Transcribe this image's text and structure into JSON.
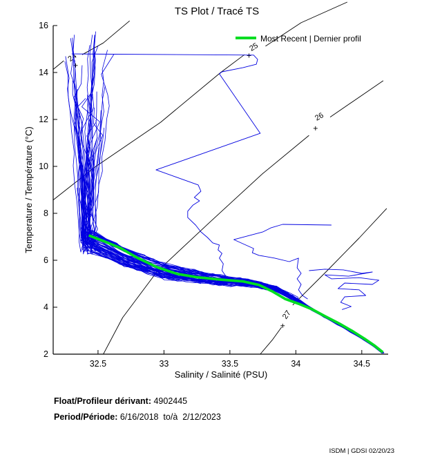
{
  "title": "TS Plot / Tracé TS",
  "legend": {
    "label": "Most Recent | Dernier profil",
    "color": "#00dd22"
  },
  "info": {
    "float_label": "Float/Profileur dérivant:",
    "float_value": " 4902445",
    "period_label": "Period/Période:",
    "period_value": " 6/16/2018  to/à  2/12/2023"
  },
  "footer": "ISDM | GDSI 02/20/23",
  "chart_data": {
    "type": "line",
    "title": "TS Plot / Tracé TS",
    "xlabel": "Salinity / Salinité (PSU)",
    "ylabel": "Temperature / Température (°C)",
    "xlim": [
      32.16,
      34.7
    ],
    "ylim": [
      2,
      16
    ],
    "xticks": [
      32.5,
      33,
      33.5,
      34,
      34.5
    ],
    "yticks": [
      2,
      4,
      6,
      8,
      10,
      12,
      14,
      16
    ],
    "grid": false,
    "legend_position": "top-right",
    "profile_color": "#0000e0",
    "most_recent_profile": {
      "name": "Most Recent | Dernier profil",
      "color": "#00dd22",
      "points_S_T": [
        [
          32.43,
          7.06
        ],
        [
          32.55,
          6.8
        ],
        [
          32.67,
          6.52
        ],
        [
          32.8,
          6.1
        ],
        [
          32.95,
          5.7
        ],
        [
          33.1,
          5.42
        ],
        [
          33.25,
          5.28
        ],
        [
          33.42,
          5.18
        ],
        [
          33.6,
          5.1
        ],
        [
          33.72,
          4.95
        ],
        [
          33.82,
          4.68
        ],
        [
          33.92,
          4.35
        ],
        [
          34.02,
          4.15
        ],
        [
          34.12,
          3.92
        ],
        [
          34.22,
          3.62
        ],
        [
          34.33,
          3.3
        ],
        [
          34.43,
          2.98
        ],
        [
          34.52,
          2.66
        ],
        [
          34.6,
          2.35
        ],
        [
          34.66,
          2.08
        ]
      ]
    },
    "ensemble": {
      "description": "All historical TS profiles of float 4902445 (blue spaghetti)",
      "color": "#0000e0",
      "count": 55,
      "seed": 11,
      "surface_T_min": 7.3,
      "surface_T_max": 15.9,
      "knee": {
        "S": 32.41,
        "T": 6.7,
        "S_spread": 0.1,
        "T_spread": 0.9
      },
      "traverse_anchors": {
        "S": [
          32.45,
          32.7,
          33.0,
          33.3,
          33.6,
          33.85,
          34.02
        ],
        "T": [
          6.85,
          6.15,
          5.55,
          5.25,
          5.05,
          4.8,
          4.28
        ]
      },
      "deep_anchors": {
        "S": [
          34.02,
          34.12,
          34.22,
          34.32,
          34.42,
          34.52,
          34.6,
          34.66
        ],
        "T": [
          4.28,
          3.92,
          3.6,
          3.28,
          2.95,
          2.62,
          2.33,
          2.05
        ]
      }
    },
    "outlier_profiles": [
      {
        "points_S_T": [
          [
            32.3,
            14.79
          ],
          [
            33.68,
            14.74
          ],
          [
            33.71,
            14.56
          ],
          [
            33.7,
            14.35
          ],
          [
            33.6,
            14.21
          ],
          [
            33.44,
            14.03
          ],
          [
            33.42,
            13.94
          ],
          [
            33.73,
            11.41
          ],
          [
            32.94,
            9.85
          ],
          [
            33.26,
            9.21
          ],
          [
            33.28,
            8.94
          ],
          [
            33.23,
            8.68
          ],
          [
            33.27,
            8.53
          ],
          [
            33.22,
            8.35
          ],
          [
            33.18,
            8.09
          ],
          [
            33.18,
            7.82
          ],
          [
            33.24,
            7.5
          ],
          [
            33.28,
            7.21
          ],
          [
            33.33,
            6.97
          ],
          [
            33.37,
            6.74
          ],
          [
            33.42,
            6.65
          ],
          [
            33.41,
            6.44
          ],
          [
            33.44,
            6.29
          ],
          [
            33.42,
            6.09
          ],
          [
            33.45,
            5.85
          ],
          [
            33.44,
            5.56
          ],
          [
            33.47,
            5.32
          ]
        ]
      },
      {
        "points_S_T": [
          [
            34.27,
            7.5
          ],
          [
            33.9,
            7.53
          ],
          [
            33.81,
            7.38
          ],
          [
            33.75,
            7.21
          ],
          [
            33.53,
            6.88
          ],
          [
            33.62,
            6.65
          ],
          [
            33.68,
            6.5
          ],
          [
            33.67,
            6.32
          ],
          [
            33.72,
            6.21
          ],
          [
            33.84,
            6.09
          ],
          [
            33.95,
            5.94
          ],
          [
            34.02,
            6.09
          ],
          [
            34.01,
            5.68
          ],
          [
            34.04,
            5.44
          ],
          [
            34.01,
            5.21
          ],
          [
            34.04,
            4.97
          ],
          [
            34.02,
            4.74
          ],
          [
            34.05,
            4.5
          ],
          [
            34.09,
            4.35
          ]
        ]
      },
      {
        "points_S_T": [
          [
            34.1,
            5.56
          ],
          [
            34.22,
            5.62
          ],
          [
            34.36,
            5.59
          ],
          [
            34.5,
            5.44
          ],
          [
            34.58,
            5.5
          ],
          [
            34.4,
            5.32
          ],
          [
            34.22,
            5.38
          ],
          [
            34.27,
            5.21
          ],
          [
            34.48,
            5.26
          ],
          [
            34.63,
            5.15
          ],
          [
            34.58,
            4.97
          ],
          [
            34.37,
            5.03
          ],
          [
            34.32,
            4.79
          ],
          [
            34.48,
            4.74
          ],
          [
            34.53,
            4.5
          ],
          [
            34.37,
            4.44
          ],
          [
            34.34,
            4.21
          ],
          [
            34.42,
            4.03
          ],
          [
            34.35,
            3.9
          ]
        ]
      }
    ],
    "density_contours": {
      "color": "#000000",
      "levels": [
        {
          "label": "24",
          "rotation": -36,
          "label_at": [
            32.315,
            14.56
          ],
          "plus_at": [
            32.33,
            14.3
          ],
          "seg1": [
            [
              32.158,
              14.12
            ],
            [
              32.24,
              14.5
            ]
          ],
          "seg2": [
            [
              32.38,
              14.76
            ],
            [
              32.54,
              15.26
            ],
            [
              32.74,
              16.2
            ]
          ]
        },
        {
          "label": "25",
          "rotation": -32,
          "label_at": [
            33.69,
            15.0
          ],
          "plus_at": [
            33.645,
            14.72
          ],
          "seg1": [
            [
              32.158,
              8.56
            ],
            [
              32.477,
              9.97
            ],
            [
              32.975,
              11.88
            ],
            [
              33.43,
              14.0
            ],
            [
              33.61,
              14.76
            ]
          ],
          "seg2": [
            [
              33.77,
              15.12
            ],
            [
              34.04,
              16.12
            ],
            [
              34.39,
              17.0
            ]
          ]
        },
        {
          "label": "26",
          "rotation": -30,
          "label_at": [
            34.186,
            12.03
          ],
          "plus_at": [
            34.149,
            11.62
          ],
          "seg1": [
            [
              32.54,
              2.0
            ],
            [
              32.687,
              3.56
            ],
            [
              32.949,
              5.53
            ],
            [
              33.347,
              7.62
            ],
            [
              33.746,
              9.68
            ],
            [
              34.1,
              11.32
            ]
          ],
          "seg2": [
            [
              34.26,
              12.1
            ],
            [
              34.663,
              13.65
            ]
          ]
        },
        {
          "label": "27",
          "rotation": -55,
          "label_at": [
            33.945,
            3.62
          ],
          "plus_at": [
            33.9,
            3.21
          ],
          "seg1": [
            [
              33.73,
              2.0
            ],
            [
              33.824,
              2.62
            ],
            [
              33.892,
              3.15
            ]
          ],
          "seg2": [
            [
              33.976,
              4.09
            ],
            [
              34.233,
              5.53
            ],
            [
              34.479,
              6.94
            ],
            [
              34.689,
              8.21
            ]
          ]
        }
      ]
    }
  }
}
